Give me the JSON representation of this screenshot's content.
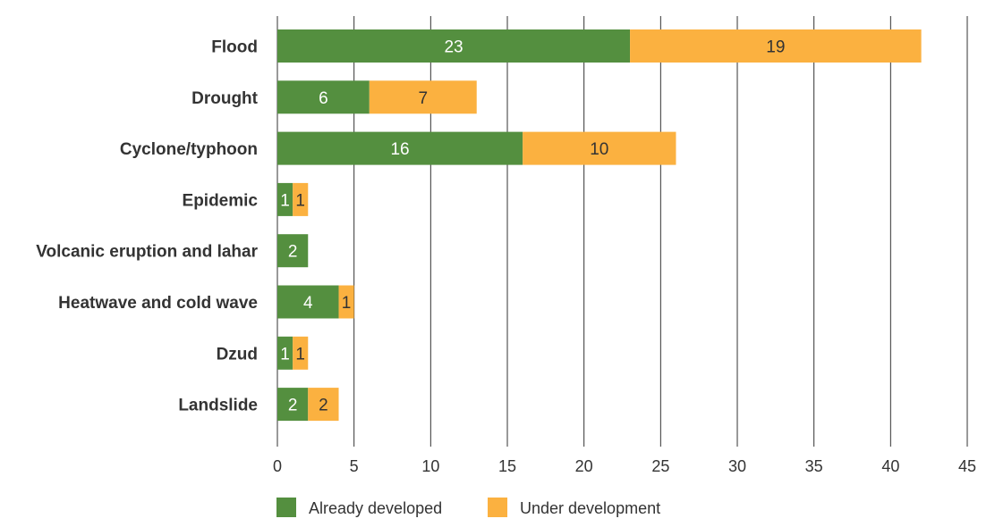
{
  "chart_data": {
    "type": "bar",
    "orientation": "horizontal",
    "stacked": true,
    "categories": [
      "Flood",
      "Drought",
      "Cyclone/typhoon",
      "Epidemic",
      "Volcanic eruption and lahar",
      "Heatwave and cold wave",
      "Dzud",
      "Landslide"
    ],
    "series": [
      {
        "name": "Already developed",
        "values": [
          23,
          6,
          16,
          1,
          2,
          4,
          1,
          2
        ],
        "color": "#548f3f",
        "label_color": "#ffffff"
      },
      {
        "name": "Under development",
        "values": [
          19,
          7,
          10,
          1,
          0,
          1,
          1,
          2
        ],
        "color": "#fbb140",
        "label_color": "#333333"
      }
    ],
    "xlim": [
      0,
      45
    ],
    "xticks": [
      0,
      5,
      10,
      15,
      20,
      25,
      30,
      35,
      40,
      45
    ],
    "grid": true,
    "legend_position": "bottom"
  }
}
